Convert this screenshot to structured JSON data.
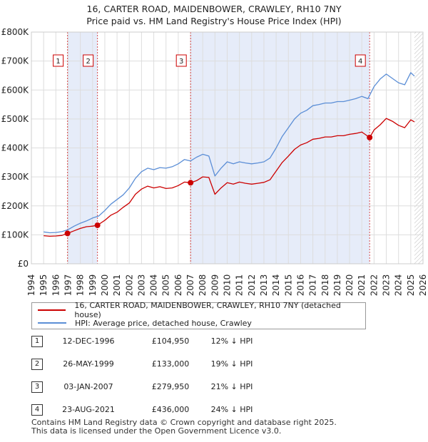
{
  "title_line1": "16, CARTER ROAD, MAIDENBOWER, CRAWLEY, RH10 7NY",
  "title_line2": "Price paid vs. HM Land Registry's House Price Index (HPI)",
  "colors": {
    "property": "#cc0000",
    "hpi": "#5b8ed6",
    "shade": "#dde6f7",
    "marker_box": "#cc0000"
  },
  "chart_data": {
    "type": "line",
    "title": "16, CARTER ROAD, MAIDENBOWER, CRAWLEY, RH10 7NY — Price paid vs. HM Land Registry's House Price Index (HPI)",
    "xlabel": "",
    "ylabel": "",
    "xlim": [
      1994,
      2026
    ],
    "ylim": [
      0,
      800000
    ],
    "y_ticks": [
      0,
      100000,
      200000,
      300000,
      400000,
      500000,
      600000,
      700000,
      800000
    ],
    "y_tick_labels": [
      "£0",
      "£100K",
      "£200K",
      "£300K",
      "£400K",
      "£500K",
      "£600K",
      "£700K",
      "£800K"
    ],
    "x_ticks": [
      1994,
      1995,
      1996,
      1997,
      1998,
      1999,
      2000,
      2001,
      2002,
      2003,
      2004,
      2005,
      2006,
      2007,
      2008,
      2009,
      2010,
      2011,
      2012,
      2013,
      2014,
      2015,
      2016,
      2017,
      2018,
      2019,
      2020,
      2021,
      2022,
      2023,
      2024,
      2025,
      2026
    ],
    "x_tick_labels": [
      "1994",
      "1995",
      "1996",
      "1997",
      "1998",
      "1999",
      "2000",
      "2001",
      "2002",
      "2003",
      "2004",
      "2005",
      "2006",
      "2007",
      "2008",
      "2009",
      "2010",
      "2011",
      "2012",
      "2013",
      "2014",
      "2015",
      "2016",
      "2017",
      "2018",
      "2019",
      "2020",
      "2021",
      "2022",
      "2023",
      "2024",
      "2025",
      "2026"
    ],
    "grid": true,
    "data_range_end": 2025.3,
    "series": [
      {
        "name": "16, CARTER ROAD, MAIDENBOWER, CRAWLEY, RH10 7NY (detached house)",
        "x": [
          1995.0,
          1995.5,
          1996.0,
          1996.5,
          1996.95,
          1997.5,
          1998.0,
          1998.5,
          1999.0,
          1999.4,
          2000.0,
          2000.5,
          2001.0,
          2001.5,
          2002.0,
          2002.5,
          2003.0,
          2003.5,
          2004.0,
          2004.5,
          2005.0,
          2005.5,
          2006.0,
          2006.5,
          2007.01,
          2007.5,
          2008.0,
          2008.5,
          2009.0,
          2009.5,
          2010.0,
          2010.5,
          2011.0,
          2011.5,
          2012.0,
          2012.5,
          2013.0,
          2013.5,
          2014.0,
          2014.5,
          2015.0,
          2015.5,
          2016.0,
          2016.5,
          2017.0,
          2017.5,
          2018.0,
          2018.5,
          2019.0,
          2019.5,
          2020.0,
          2020.5,
          2021.0,
          2021.64,
          2022.0,
          2022.5,
          2023.0,
          2023.5,
          2024.0,
          2024.5,
          2025.0,
          2025.3
        ],
        "values": [
          97000,
          95000,
          96000,
          98000,
          104950,
          114000,
          122000,
          128000,
          130000,
          133000,
          150000,
          168000,
          178000,
          195000,
          210000,
          240000,
          258000,
          268000,
          262000,
          266000,
          260000,
          262000,
          270000,
          282000,
          279950,
          287000,
          300000,
          298000,
          240000,
          262000,
          280000,
          275000,
          282000,
          278000,
          275000,
          278000,
          281000,
          290000,
          320000,
          350000,
          372000,
          395000,
          410000,
          418000,
          430000,
          433000,
          438000,
          438000,
          442000,
          442000,
          447000,
          450000,
          455000,
          436000,
          462000,
          480000,
          502000,
          492000,
          478000,
          470000,
          497000,
          490000
        ]
      },
      {
        "name": "HPI: Average price, detached house, Crawley",
        "x": [
          1995.0,
          1995.5,
          1996.0,
          1996.5,
          1997.0,
          1997.5,
          1998.0,
          1998.5,
          1999.0,
          1999.5,
          2000.0,
          2000.5,
          2001.0,
          2001.5,
          2002.0,
          2002.5,
          2003.0,
          2003.5,
          2004.0,
          2004.5,
          2005.0,
          2005.5,
          2006.0,
          2006.5,
          2007.0,
          2007.5,
          2008.0,
          2008.5,
          2009.0,
          2009.5,
          2010.0,
          2010.5,
          2011.0,
          2011.5,
          2012.0,
          2012.5,
          2013.0,
          2013.5,
          2014.0,
          2014.5,
          2015.0,
          2015.5,
          2016.0,
          2016.5,
          2017.0,
          2017.5,
          2018.0,
          2018.5,
          2019.0,
          2019.5,
          2020.0,
          2020.5,
          2021.0,
          2021.5,
          2022.0,
          2022.5,
          2023.0,
          2023.5,
          2024.0,
          2024.5,
          2025.0,
          2025.3
        ],
        "values": [
          110000,
          107000,
          108000,
          111000,
          118000,
          130000,
          140000,
          148000,
          158000,
          165000,
          184000,
          206000,
          222000,
          238000,
          262000,
          295000,
          318000,
          330000,
          325000,
          332000,
          330000,
          335000,
          345000,
          360000,
          355000,
          368000,
          378000,
          372000,
          303000,
          330000,
          352000,
          345000,
          352000,
          348000,
          345000,
          348000,
          352000,
          365000,
          400000,
          440000,
          470000,
          500000,
          520000,
          530000,
          546000,
          550000,
          555000,
          555000,
          560000,
          560000,
          565000,
          570000,
          578000,
          570000,
          612000,
          638000,
          655000,
          640000,
          625000,
          618000,
          660000,
          648000
        ]
      }
    ],
    "transactions": [
      {
        "num": "1",
        "x": 1996.95,
        "value": 104950,
        "date": "12-DEC-1996",
        "price": "£104,950",
        "hpi_diff": "12% ↓ HPI"
      },
      {
        "num": "2",
        "x": 1999.4,
        "value": 133000,
        "date": "26-MAY-1999",
        "price": "£133,000",
        "hpi_diff": "19% ↓ HPI"
      },
      {
        "num": "3",
        "x": 2007.01,
        "value": 279950,
        "date": "03-JAN-2007",
        "price": "£279,950",
        "hpi_diff": "21% ↓ HPI"
      },
      {
        "num": "4",
        "x": 2021.64,
        "value": 436000,
        "date": "23-AUG-2021",
        "price": "£436,000",
        "hpi_diff": "24% ↓ HPI"
      }
    ],
    "shaded_spans": [
      [
        1996.95,
        1999.4
      ],
      [
        2007.01,
        2021.64
      ]
    ]
  },
  "legend": {
    "property_label": "16, CARTER ROAD, MAIDENBOWER, CRAWLEY, RH10 7NY (detached house)",
    "hpi_label": "HPI: Average price, detached house, Crawley"
  },
  "footer": {
    "line1": "Contains HM Land Registry data © Crown copyright and database right 2025.",
    "line2": "This data is licensed under the Open Government Licence v3.0."
  }
}
